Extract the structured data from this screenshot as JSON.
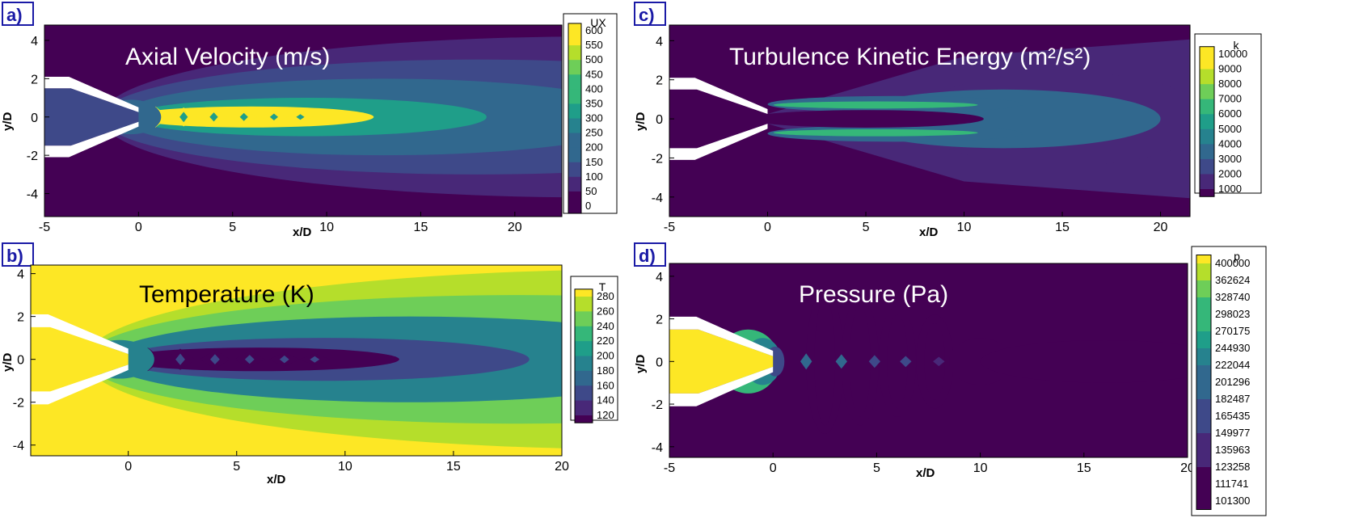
{
  "chart_data": [
    {
      "id": "a",
      "panel_label": "a)",
      "type": "heatmap",
      "field": "UX",
      "title": "Axial Velocity (m/s)",
      "title_color": "#ffffff",
      "xlabel": "x/D",
      "ylabel": "y/D",
      "xlim": [
        -5,
        22.5
      ],
      "ylim": [
        -5.2,
        4.8
      ],
      "xticks": [
        -5,
        0,
        5,
        10,
        15,
        20
      ],
      "yticks": [
        -4,
        -2,
        0,
        2,
        4
      ],
      "legend_title": "UX",
      "legend_levels": [
        600,
        550,
        500,
        450,
        400,
        350,
        300,
        250,
        200,
        150,
        100,
        50,
        0
      ],
      "range": [
        0,
        600
      ],
      "ambient_value": 20,
      "inner_value": 130,
      "jet": {
        "core": 600,
        "shear": 320,
        "mid": 220,
        "outer": 140,
        "far": 80,
        "diamonds": [
          0.9,
          2.4,
          4.0,
          5.6,
          7.2,
          8.6
        ]
      }
    },
    {
      "id": "b",
      "panel_label": "b)",
      "type": "heatmap",
      "field": "T",
      "title": "Temperature (K)",
      "title_color": "#000000",
      "xlabel": "x/D",
      "ylabel": "y/D",
      "xlim": [
        -4.5,
        20
      ],
      "ylim": [
        -4.5,
        4.4
      ],
      "xticks": [
        0,
        5,
        10,
        15,
        20
      ],
      "yticks": [
        -4,
        -2,
        0,
        2,
        4
      ],
      "legend_title": "T",
      "legend_levels": [
        280,
        260,
        240,
        220,
        200,
        180,
        160,
        140,
        120
      ],
      "range": [
        120,
        290
      ],
      "ambient_value": 288,
      "inner_value": 288,
      "jet": {
        "core": 125,
        "shear": 165,
        "mid": 200,
        "outer": 245,
        "far": 265,
        "diamonds": [
          0.9,
          2.4,
          4.0,
          5.6,
          7.2,
          8.6
        ]
      }
    },
    {
      "id": "c",
      "panel_label": "c)",
      "type": "heatmap",
      "field": "k",
      "title": "Turbulence Kinetic Energy (m²/s²)",
      "title_color": "#ffffff",
      "xlabel": "x/D",
      "ylabel": "y/D",
      "xlim": [
        -5,
        21.5
      ],
      "ylim": [
        -5,
        4.8
      ],
      "xticks": [
        -5,
        0,
        5,
        10,
        15,
        20
      ],
      "yticks": [
        -4,
        -2,
        0,
        2,
        4
      ],
      "legend_title": "k",
      "legend_levels": [
        10000,
        9000,
        8000,
        7000,
        6000,
        5000,
        4000,
        3000,
        2000,
        1000
      ],
      "range": [
        1000,
        10000
      ],
      "ambient_value": 600,
      "inner_value": 600,
      "jet": {
        "peak": 6500,
        "mid": 3800,
        "outer": 2200,
        "far": 1600
      }
    },
    {
      "id": "d",
      "panel_label": "d)",
      "type": "heatmap",
      "field": "p",
      "title": "Pressure (Pa)",
      "title_color": "#ffffff",
      "xlabel": "x/D",
      "ylabel": "y/D",
      "xlim": [
        -5,
        20
      ],
      "ylim": [
        -4.5,
        4.6
      ],
      "xticks": [
        -5,
        0,
        5,
        10,
        15,
        20
      ],
      "yticks": [
        -4,
        -2,
        0,
        2,
        4
      ],
      "legend_title": "p",
      "legend_levels": [
        400000,
        362624,
        328740,
        298023,
        270175,
        244930,
        222044,
        201296,
        182487,
        165435,
        149977,
        135963,
        123258,
        111741,
        101300
      ],
      "range": [
        101300,
        400000
      ],
      "ambient_value": 101300,
      "inner_value": 400000,
      "jet": {
        "diamonds": [
          1.6,
          3.3,
          4.9,
          6.4,
          8.0
        ],
        "diamond_value": 205000,
        "wave_value": 115000
      }
    }
  ],
  "colormap": [
    "#440154",
    "#482878",
    "#3e4989",
    "#31688e",
    "#26828e",
    "#1f9e89",
    "#35b779",
    "#6ece58",
    "#b5de2b",
    "#fde725"
  ]
}
